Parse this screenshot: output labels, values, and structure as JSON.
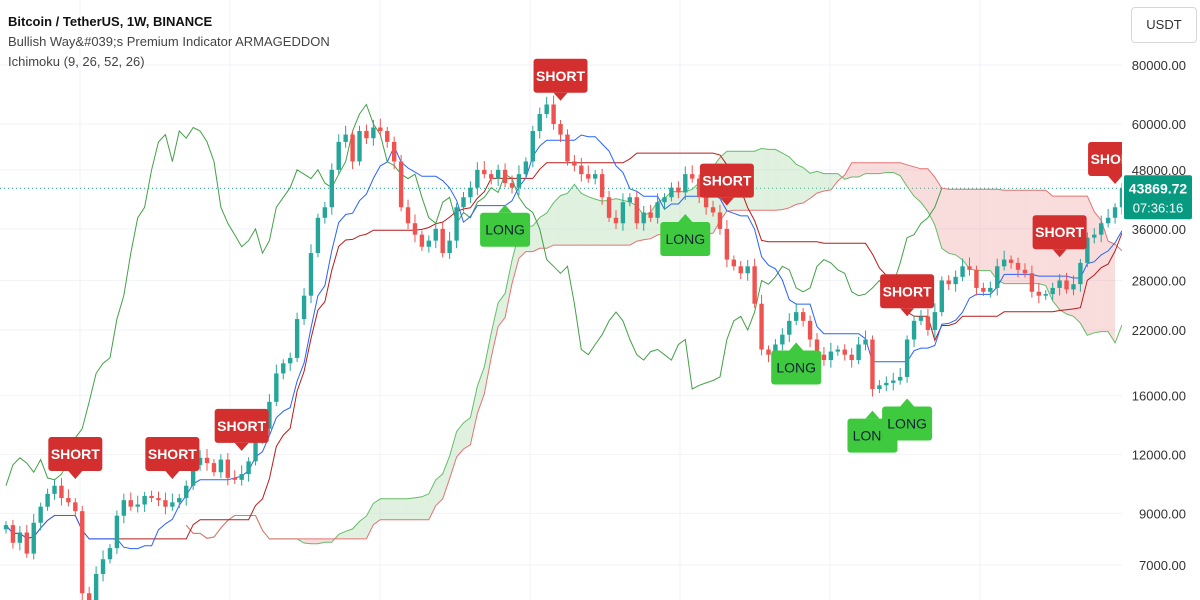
{
  "header": {
    "symbol_line": "Bitcoin / TetherUS, 1W, BINANCE",
    "indicator_line": "Bullish Way&#039;s Premium Indicator ARMAGEDDON",
    "ichimoku_line": "Ichimoku (9, 26, 52, 26)"
  },
  "currency": "USDT",
  "price_badge": {
    "price": "43869.72",
    "countdown": "07:36:16"
  },
  "colors": {
    "up": "#26a69a",
    "down": "#ef5350",
    "tenkan": "#2962ff",
    "kijun": "#b71c1c",
    "lagging": "#43a047",
    "cloud_bull": "#a5d6a7",
    "cloud_bear": "#ef9a9a",
    "long": "#3ec93e",
    "short": "#d32f2f",
    "badge": "#089981"
  },
  "chart_data": {
    "type": "candlestick",
    "y_axis": {
      "scale": "log",
      "ticks": [
        80000,
        60000,
        48000,
        36000,
        28000,
        22000,
        16000,
        12000,
        9000,
        7000
      ],
      "tick_labels": [
        "80000.00",
        "60000.00",
        "48000.00",
        "36000.00",
        "28000.00",
        "22000.00",
        "16000.00",
        "12000.00",
        "9000.00",
        "7000.00"
      ]
    },
    "grid": true,
    "current_price": 43869.72,
    "close_series": [
      8500,
      7800,
      8200,
      7400,
      8600,
      9300,
      9900,
      10300,
      9700,
      9500,
      9100,
      6100,
      5400,
      6700,
      7200,
      7600,
      8900,
      9600,
      9300,
      9400,
      9800,
      9700,
      9600,
      9300,
      9500,
      9700,
      10300,
      11400,
      11800,
      11500,
      11000,
      11700,
      10700,
      10600,
      10900,
      11600,
      13000,
      13600,
      15500,
      17800,
      18700,
      19200,
      23200,
      26000,
      32000,
      38000,
      40000,
      48000,
      55000,
      57000,
      50000,
      58000,
      56000,
      59000,
      58000,
      55000,
      50000,
      40000,
      37000,
      35000,
      33000,
      34000,
      36000,
      32000,
      34000,
      40000,
      42000,
      44000,
      48000,
      47000,
      46000,
      48000,
      45000,
      44000,
      47000,
      50000,
      58000,
      63000,
      66000,
      60000,
      57000,
      50000,
      49000,
      47000,
      46000,
      47000,
      42000,
      38000,
      37000,
      41000,
      42000,
      37000,
      39000,
      38000,
      41000,
      42000,
      44000,
      43000,
      47000,
      46000,
      42000,
      40000,
      39000,
      36000,
      31000,
      30000,
      29000,
      30000,
      25000,
      20000,
      19500,
      20500,
      21500,
      23000,
      24000,
      23000,
      21000,
      19500,
      19000,
      19800,
      20000,
      19500,
      19000,
      20500,
      21000,
      16500,
      16800,
      17000,
      17200,
      17500,
      21000,
      23000,
      23500,
      22000,
      24000,
      28000,
      27500,
      28500,
      30000,
      29500,
      27000,
      26500,
      27000,
      30000,
      31000,
      30500,
      29500,
      29000,
      26500,
      26000,
      26200,
      27000,
      28000,
      26800,
      27500,
      30500,
      34500,
      35000,
      37000,
      38000,
      40000,
      43869.72
    ],
    "signals": [
      {
        "type": "short",
        "label": "SHORT",
        "bar": 10
      },
      {
        "type": "short",
        "label": "SHORT",
        "bar": 24
      },
      {
        "type": "short",
        "label": "SHORT",
        "bar": 34
      },
      {
        "type": "short",
        "label": "SHORT",
        "bar": 80
      },
      {
        "type": "long",
        "label": "LONG",
        "bar": 72
      },
      {
        "type": "short",
        "label": "SHORT",
        "bar": 104
      },
      {
        "type": "long",
        "label": "LONG",
        "bar": 98
      },
      {
        "type": "long",
        "label": "LONG",
        "bar": 114
      },
      {
        "type": "long",
        "label": "LONG",
        "bar": 125
      },
      {
        "type": "short",
        "label": "SHORT",
        "bar": 130
      },
      {
        "type": "long",
        "label": "LONG",
        "bar": 130
      },
      {
        "type": "short",
        "label": "SHORT",
        "bar": 152
      },
      {
        "type": "short",
        "label": "SHORT",
        "bar": 160
      },
      {
        "type": "long",
        "label": "LONG",
        "bar": 169
      }
    ]
  }
}
